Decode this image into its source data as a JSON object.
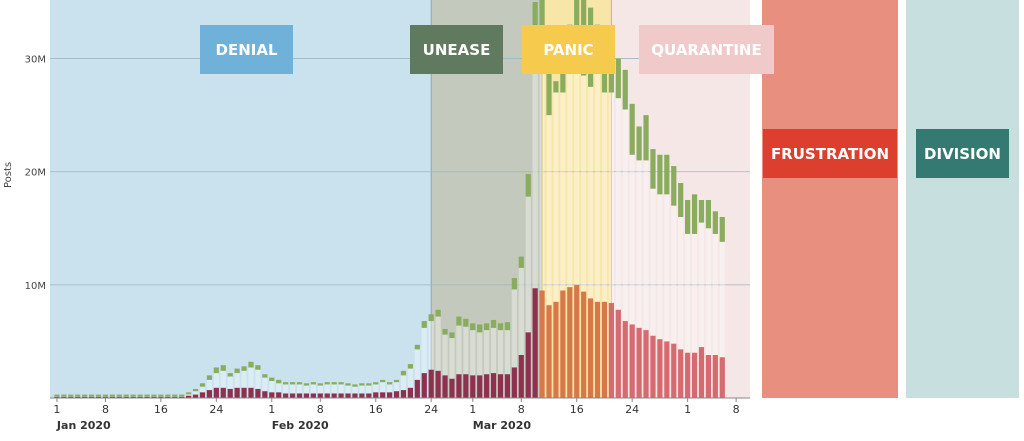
{
  "colors": {
    "denial": "#6fb1d8",
    "unease": "#607a60",
    "panic": "#f5ca4d",
    "quarantine": "#f0c9c9",
    "frustration": "#dd3f2e",
    "division": "#347a72",
    "posts_green": "#8aac5e",
    "engagement_red": "#8e3150"
  },
  "phases": {
    "denial": "DENIAL",
    "unease": "UNEASE",
    "panic": "PANIC",
    "quarantine": "QUARANTINE",
    "frustration": "FRUSTRATION",
    "division": "DIVISION"
  },
  "chart_data": {
    "type": "bar",
    "ylabel": "Posts",
    "ylim": [
      0,
      35
    ],
    "y_unit": "M",
    "y_ticks": [
      {
        "value": 10,
        "label": "10M"
      },
      {
        "value": 20,
        "label": "20M"
      },
      {
        "value": 30,
        "label": "30M"
      }
    ],
    "x_ticks": [
      {
        "date": "2020-01-01",
        "label": "1"
      },
      {
        "date": "2020-01-08",
        "label": "8"
      },
      {
        "date": "2020-01-16",
        "label": "16"
      },
      {
        "date": "2020-01-24",
        "label": "24"
      },
      {
        "date": "2020-02-01",
        "label": "1"
      },
      {
        "date": "2020-02-08",
        "label": "8"
      },
      {
        "date": "2020-02-16",
        "label": "16"
      },
      {
        "date": "2020-02-24",
        "label": "24"
      },
      {
        "date": "2020-03-01",
        "label": "1"
      },
      {
        "date": "2020-03-08",
        "label": "8"
      },
      {
        "date": "2020-03-16",
        "label": "16"
      },
      {
        "date": "2020-03-24",
        "label": "24"
      },
      {
        "date": "2020-04-01",
        "label": "1"
      },
      {
        "date": "2020-04-08",
        "label": "8"
      }
    ],
    "month_labels": [
      {
        "date": "2020-01-01",
        "label": "Jan 2020"
      },
      {
        "date": "2020-02-01",
        "label": "Feb 2020"
      },
      {
        "date": "2020-03-01",
        "label": "Mar 2020"
      }
    ],
    "x_range": [
      "2019-12-31",
      "2020-04-10"
    ],
    "phase_ranges": [
      {
        "key": "denial",
        "start": "2019-12-31",
        "end": "2020-02-24"
      },
      {
        "key": "unease",
        "start": "2020-02-24",
        "end": "2020-03-11"
      },
      {
        "key": "panic",
        "start": "2020-03-11",
        "end": "2020-03-21"
      },
      {
        "key": "quarantine",
        "start": "2020-03-21",
        "end": "2020-04-10"
      }
    ],
    "series": [
      {
        "key": "posts_top",
        "values": [
          0.3,
          0.3,
          0.3,
          0.3,
          0.3,
          0.3,
          0.3,
          0.3,
          0.3,
          0.3,
          0.3,
          0.3,
          0.3,
          0.3,
          0.3,
          0.3,
          0.3,
          0.3,
          0.3,
          0.5,
          0.8,
          1.3,
          2.0,
          2.7,
          2.9,
          2.2,
          2.6,
          2.8,
          3.2,
          2.9,
          2.1,
          1.8,
          1.6,
          1.4,
          1.4,
          1.4,
          1.3,
          1.4,
          1.3,
          1.4,
          1.4,
          1.4,
          1.3,
          1.2,
          1.3,
          1.3,
          1.4,
          1.6,
          1.4,
          1.6,
          2.4,
          3.0,
          4.7,
          6.8,
          7.4,
          7.8,
          6.1,
          5.8,
          7.2,
          7.0,
          6.6,
          6.5,
          6.6,
          6.9,
          6.6,
          6.7,
          10.6,
          12.5,
          19.8,
          35.0,
          36.0,
          30.0,
          28.0,
          29.0,
          33.0,
          35.5,
          35.2,
          34.5,
          33.0,
          31.5,
          31.5,
          30.0,
          29.0,
          26.0,
          24.0,
          25.0,
          22.0,
          21.5,
          21.5,
          20.5,
          19.0,
          17.5,
          18.0,
          17.5,
          17.5,
          16.5,
          16.0
        ]
      },
      {
        "key": "posts_bottom",
        "values": [
          0.2,
          0.2,
          0.2,
          0.2,
          0.2,
          0.2,
          0.2,
          0.2,
          0.2,
          0.2,
          0.2,
          0.2,
          0.2,
          0.2,
          0.2,
          0.2,
          0.2,
          0.2,
          0.2,
          0.4,
          0.6,
          1.0,
          1.6,
          2.2,
          2.4,
          1.9,
          2.2,
          2.4,
          2.7,
          2.5,
          1.8,
          1.5,
          1.3,
          1.2,
          1.2,
          1.2,
          1.1,
          1.2,
          1.1,
          1.2,
          1.2,
          1.2,
          1.1,
          1.0,
          1.1,
          1.1,
          1.2,
          1.4,
          1.2,
          1.4,
          2.0,
          2.6,
          4.3,
          6.2,
          6.8,
          7.2,
          5.6,
          5.3,
          6.4,
          6.3,
          6.0,
          5.8,
          6.0,
          6.2,
          6.0,
          6.0,
          9.6,
          11.5,
          17.8,
          29.0,
          30.0,
          25.0,
          27.0,
          27.0,
          29.0,
          30.0,
          28.5,
          27.5,
          29.0,
          27.0,
          27.0,
          26.5,
          25.5,
          21.5,
          21.0,
          21.0,
          18.5,
          18.0,
          18.0,
          17.0,
          16.0,
          14.5,
          14.5,
          15.5,
          15.0,
          14.5,
          13.8
        ]
      },
      {
        "key": "engagement",
        "values": [
          0.1,
          0.1,
          0.1,
          0.1,
          0.1,
          0.1,
          0.1,
          0.1,
          0.1,
          0.1,
          0.1,
          0.1,
          0.1,
          0.1,
          0.1,
          0.1,
          0.1,
          0.1,
          0.1,
          0.2,
          0.3,
          0.5,
          0.7,
          0.9,
          0.9,
          0.8,
          0.9,
          0.9,
          0.9,
          0.8,
          0.6,
          0.5,
          0.5,
          0.4,
          0.4,
          0.4,
          0.4,
          0.4,
          0.4,
          0.4,
          0.4,
          0.4,
          0.4,
          0.4,
          0.4,
          0.4,
          0.5,
          0.5,
          0.5,
          0.6,
          0.7,
          0.9,
          1.6,
          2.2,
          2.5,
          2.4,
          2.0,
          1.7,
          2.1,
          2.1,
          2.0,
          2.0,
          2.1,
          2.2,
          2.1,
          2.1,
          2.7,
          3.8,
          5.8,
          9.7,
          9.5,
          8.2,
          8.5,
          9.5,
          9.8,
          10.0,
          9.4,
          8.8,
          8.5,
          8.5,
          8.4,
          7.8,
          6.8,
          6.5,
          6.2,
          6.0,
          5.5,
          5.2,
          5.0,
          4.8,
          4.3,
          4.0,
          4.0,
          4.5,
          3.8,
          3.8,
          3.6
        ]
      }
    ]
  }
}
